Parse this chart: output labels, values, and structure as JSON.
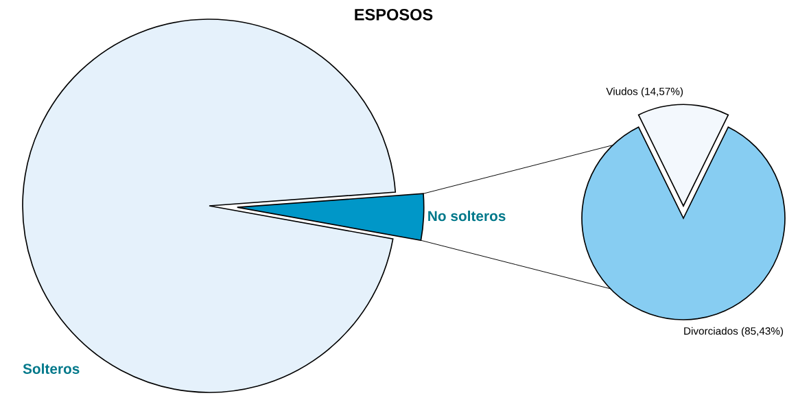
{
  "chart_data": [
    {
      "type": "pie",
      "title": "ESPOSOS",
      "categories": [
        "Solteros",
        "No solteros"
      ],
      "values": [
        96,
        4
      ],
      "colors": [
        "#e5f1fb",
        "#0097c8"
      ]
    },
    {
      "type": "pie",
      "categories": [
        "Viudos",
        "Divorciados"
      ],
      "values": [
        14.57,
        85.43
      ],
      "colors": [
        "#f3f8fd",
        "#87cdf2"
      ],
      "value_labels": [
        "(14,57%)",
        "(85,43%)"
      ]
    }
  ]
}
